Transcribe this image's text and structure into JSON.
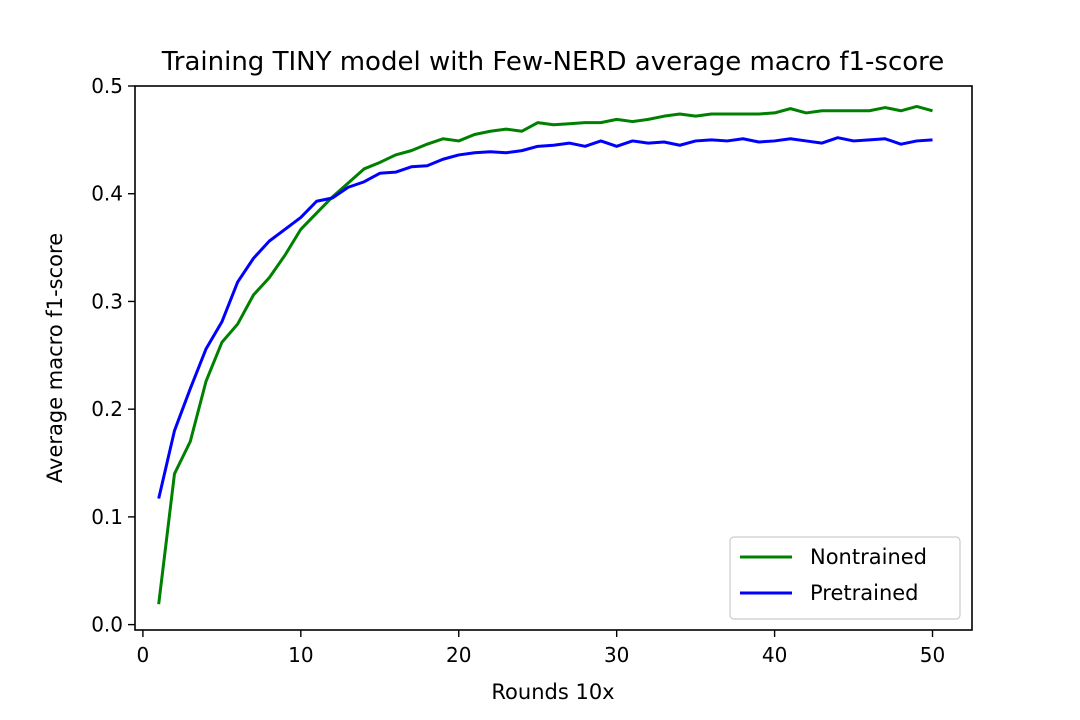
{
  "chart_data": {
    "type": "line",
    "title": "Training TINY model with Few-NERD average macro f1-score",
    "xlabel": "Rounds 10x",
    "ylabel": "Average macro f1-score",
    "xlim": [
      -0.5,
      52.5
    ],
    "ylim": [
      -0.005,
      0.5
    ],
    "xticks": [
      0,
      10,
      20,
      30,
      40,
      50
    ],
    "yticks": [
      0.0,
      0.1,
      0.2,
      0.3,
      0.4,
      0.5
    ],
    "ytick_labels": [
      "0.0",
      "0.1",
      "0.2",
      "0.3",
      "0.4",
      "0.5"
    ],
    "grid": false,
    "legend_position": "lower-right",
    "x": [
      1,
      2,
      3,
      4,
      5,
      6,
      7,
      8,
      9,
      10,
      11,
      12,
      13,
      14,
      15,
      16,
      17,
      18,
      19,
      20,
      21,
      22,
      23,
      24,
      25,
      26,
      27,
      28,
      29,
      30,
      31,
      32,
      33,
      34,
      35,
      36,
      37,
      38,
      39,
      40,
      41,
      42,
      43,
      44,
      45,
      46,
      47,
      48,
      49,
      50
    ],
    "series": [
      {
        "name": "Nontrained",
        "color": "#008000",
        "values": [
          0.019,
          0.14,
          0.17,
          0.226,
          0.262,
          0.279,
          0.306,
          0.322,
          0.343,
          0.367,
          0.382,
          0.397,
          0.41,
          0.423,
          0.429,
          0.436,
          0.44,
          0.446,
          0.451,
          0.449,
          0.455,
          0.458,
          0.46,
          0.458,
          0.466,
          0.464,
          0.465,
          0.466,
          0.466,
          0.469,
          0.467,
          0.469,
          0.472,
          0.474,
          0.472,
          0.474,
          0.474,
          0.474,
          0.474,
          0.475,
          0.479,
          0.475,
          0.477,
          0.477,
          0.477,
          0.477,
          0.48,
          0.477,
          0.481,
          0.477
        ]
      },
      {
        "name": "Pretrained",
        "color": "#0000ff",
        "values": [
          0.117,
          0.18,
          0.219,
          0.256,
          0.281,
          0.318,
          0.34,
          0.356,
          0.367,
          0.378,
          0.393,
          0.396,
          0.406,
          0.411,
          0.419,
          0.42,
          0.425,
          0.426,
          0.432,
          0.436,
          0.438,
          0.439,
          0.438,
          0.44,
          0.444,
          0.445,
          0.447,
          0.444,
          0.449,
          0.444,
          0.449,
          0.447,
          0.448,
          0.445,
          0.449,
          0.45,
          0.449,
          0.451,
          0.448,
          0.449,
          0.451,
          0.449,
          0.447,
          0.452,
          0.449,
          0.45,
          0.451,
          0.446,
          0.449,
          0.45
        ]
      }
    ]
  }
}
